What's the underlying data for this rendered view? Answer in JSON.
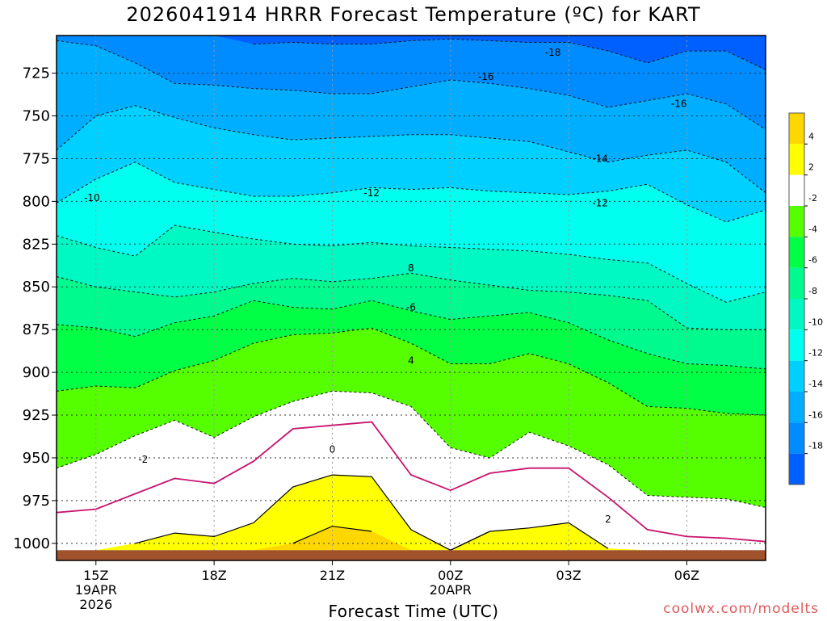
{
  "title": "2026041914 HRRR Forecast Temperature (ºC) for KART",
  "xlabel": "Forecast Time (UTC)",
  "credit": "coolwx.com/modelts",
  "chart_data": {
    "type": "heatmap",
    "title": "2026041914 HRRR Forecast Temperature (ºC) for KART",
    "xlabel": "Forecast Time (UTC)",
    "ylabel": "",
    "x_ticks": [
      {
        "hour": 15,
        "lines": [
          "15Z",
          "19APR",
          "2026"
        ]
      },
      {
        "hour": 18,
        "lines": [
          "18Z"
        ]
      },
      {
        "hour": 21,
        "lines": [
          "21Z"
        ]
      },
      {
        "hour": 24,
        "lines": [
          "00Z",
          "20APR"
        ]
      },
      {
        "hour": 27,
        "lines": [
          "03Z"
        ]
      },
      {
        "hour": 30,
        "lines": [
          "06Z"
        ]
      }
    ],
    "x_range": [
      "14Z 19APR",
      "08Z 20APR"
    ],
    "y_axis": {
      "units": "hPa",
      "range": [
        1010,
        703
      ],
      "ticks": [
        725,
        750,
        775,
        800,
        825,
        850,
        875,
        900,
        925,
        950,
        975,
        1000
      ]
    },
    "grid": "dotted",
    "contour_levels_labeled": [
      "-18",
      "-16",
      "-16",
      "-14",
      "-12",
      "-12",
      "-10",
      "8",
      "-6",
      "4",
      "-2",
      "0",
      "2"
    ],
    "colorbar": {
      "placement": "right",
      "labels": [
        "4",
        "2",
        "-2",
        "-4",
        "-6",
        "-8",
        "-10",
        "-12",
        "-14",
        "-16",
        "-18"
      ],
      "colors": [
        "#FFD700",
        "#FFFF00",
        "#FFFFFF",
        "#55FF00",
        "#00FF45",
        "#00FA8E",
        "#00F8C2",
        "#00FFEE",
        "#00D0FF",
        "#00AEFF",
        "#008CFF",
        "#0060FF"
      ]
    },
    "x_hours": [
      14,
      15,
      16,
      17,
      18,
      19,
      20,
      21,
      22,
      23,
      24,
      25,
      26,
      27,
      28,
      29,
      30,
      31,
      32
    ],
    "isotherms_hPa": {
      "-18": [
        null,
        null,
        null,
        null,
        null,
        708,
        707,
        708,
        708,
        706,
        705,
        706,
        707,
        707,
        712,
        719,
        712,
        712,
        723
      ],
      "-16": [
        706,
        709,
        719,
        731,
        732,
        734,
        735,
        737,
        737,
        733,
        729,
        731,
        734,
        738,
        745,
        741,
        737,
        743,
        758
      ],
      "-14": [
        770,
        750,
        744,
        751,
        757,
        761,
        764,
        763,
        762,
        761,
        761,
        763,
        765,
        771,
        777,
        773,
        770,
        777,
        795
      ],
      "-12": [
        801,
        787,
        777,
        789,
        793,
        797,
        797,
        795,
        792,
        793,
        792,
        794,
        795,
        796,
        794,
        790,
        802,
        812,
        805
      ],
      "-10": [
        820,
        827,
        832,
        814,
        818,
        822,
        825,
        826,
        824,
        826,
        827,
        828,
        829,
        831,
        834,
        836,
        848,
        859,
        853
      ],
      "-8": [
        844,
        850,
        853,
        856,
        853,
        848,
        845,
        847,
        845,
        842,
        846,
        849,
        852,
        853,
        855,
        858,
        874,
        875,
        875
      ],
      "-6": [
        872,
        874,
        879,
        871,
        867,
        858,
        862,
        863,
        858,
        864,
        869,
        867,
        865,
        871,
        881,
        889,
        895,
        896,
        898
      ],
      "-4": [
        911,
        908,
        909,
        899,
        893,
        883,
        878,
        877,
        874,
        883,
        895,
        895,
        889,
        895,
        906,
        920,
        921,
        924,
        925
      ],
      "-2": [
        956,
        948,
        937,
        928,
        938,
        926,
        917,
        911,
        912,
        920,
        944,
        950,
        935,
        943,
        954,
        972,
        973,
        974,
        979
      ]
    },
    "zero_line_hPa": [
      982,
      980,
      971,
      962,
      965,
      952,
      933,
      931,
      929,
      960,
      969,
      959,
      956,
      956,
      973,
      992,
      996,
      997,
      999
    ],
    "plus2_line_hPa": [
      1004,
      1004,
      1000,
      994,
      996,
      988,
      967,
      960,
      961,
      992,
      1004,
      993,
      991,
      988,
      1003,
      null,
      null,
      null,
      null
    ],
    "plus4_area_hPa": [
      null,
      null,
      null,
      null,
      null,
      null,
      1000,
      990,
      993,
      null,
      null,
      null,
      null,
      null,
      null,
      null,
      null,
      null,
      null
    ],
    "surface_hPa": 1004
  }
}
